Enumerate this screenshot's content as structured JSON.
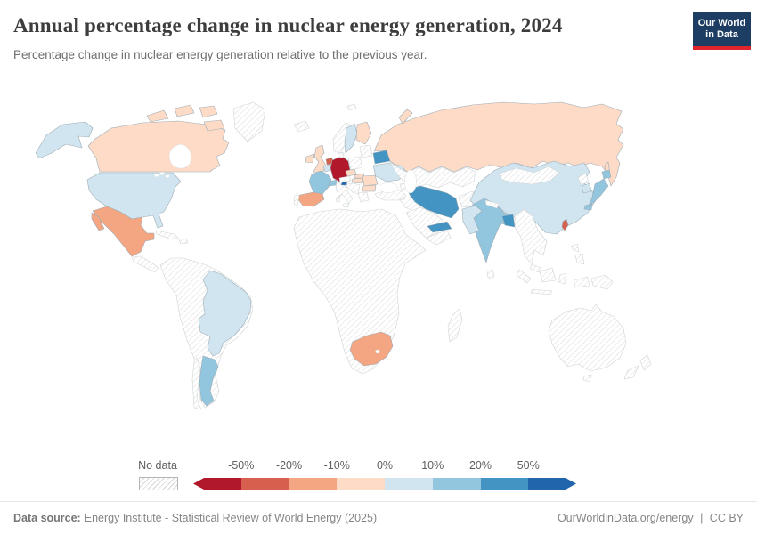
{
  "header": {
    "title": "Annual percentage change in nuclear energy generation, 2024",
    "subtitle": "Percentage change in nuclear energy generation relative to the previous year."
  },
  "logo": {
    "line1": "Our World",
    "line2": "in Data",
    "bg_color": "#1d3d63",
    "accent_color": "#e0232d"
  },
  "legend": {
    "no_data_label": "No data",
    "tick_labels": [
      "-50%",
      "-20%",
      "-10%",
      "0%",
      "10%",
      "20%",
      "50%"
    ],
    "bin_colors": [
      "#b2182b",
      "#d6604d",
      "#f4a582",
      "#fddbc7",
      "#d1e5f0",
      "#92c5de",
      "#4393c3",
      "#2166ac"
    ]
  },
  "footer": {
    "datasource_label": "Data source:",
    "datasource_text": "Energy Institute - Statistical Review of World Energy (2025)",
    "credit_url": "OurWorldinData.org/energy",
    "credit_separator": "|",
    "credit_license": "CC BY"
  },
  "chart_data": {
    "type": "choropleth_map",
    "title": "Annual percentage change in nuclear energy generation, 2024",
    "unit": "%",
    "bin_edges_pct": [
      -50,
      -20,
      -10,
      0,
      10,
      20,
      50
    ],
    "legend_position": "bottom",
    "no_data_style": "diagonal-hatch",
    "bins": [
      {
        "range": "less than -50%",
        "color": "#b2182b",
        "countries": [
          "Germany"
        ]
      },
      {
        "range": "-50% to -20%",
        "color": "#d6604d",
        "countries": [
          "Netherlands",
          "Taiwan"
        ]
      },
      {
        "range": "-20% to -10%",
        "color": "#f4a582",
        "countries": [
          "Mexico",
          "Spain",
          "South Africa"
        ]
      },
      {
        "range": "-10% to 0%",
        "color": "#fddbc7",
        "countries": [
          "Canada",
          "Russia",
          "Finland",
          "United Kingdom",
          "Ireland",
          "Czechia",
          "Slovakia",
          "Hungary",
          "Romania",
          "Bulgaria"
        ]
      },
      {
        "range": "0% to 10%",
        "color": "#d1e5f0",
        "countries": [
          "United States",
          "Brazil",
          "China",
          "Sweden",
          "Belgium",
          "Ukraine",
          "Pakistan",
          "South Korea"
        ]
      },
      {
        "range": "10% to 20%",
        "color": "#92c5de",
        "countries": [
          "France",
          "India",
          "Argentina",
          "Japan",
          "Switzerland"
        ]
      },
      {
        "range": "20% to 50%",
        "color": "#4393c3",
        "countries": [
          "Belarus",
          "Iran",
          "United Arab Emirates",
          "Bangladesh"
        ]
      },
      {
        "range": "more than 50%",
        "color": "#2166ac",
        "countries": [
          "Slovenia"
        ]
      }
    ],
    "no_data_regions": [
      "Most of Africa",
      "Australia",
      "New Zealand",
      "Norway",
      "Italy",
      "Poland",
      "Turkey",
      "Kazakhstan and Central Asia",
      "Middle East (except Iran and UAE)",
      "Southeast Asia",
      "Indonesia",
      "Mongolia",
      "Greenland",
      "Andean South America",
      "Chile",
      "Central America",
      "Caribbean"
    ]
  },
  "map": {
    "ocean_color": "#ffffff",
    "data_border": "#9fadb5",
    "nodata_border": "#cfd4d6",
    "hatch_line_color": "#d9d9d9",
    "country_fills": {
      "canada": "#fddbc7",
      "usa": "#d1e5f0",
      "greenland": "nodata",
      "mexico": "#f4a582",
      "central_america": "nodata",
      "cuba": "nodata",
      "hispaniola": "nodata",
      "south_america": "nodata",
      "brazil": "#d1e5f0",
      "argentina": "#92c5de",
      "chile": "nodata",
      "iceland": "nodata",
      "ireland": "#fddbc7",
      "uk": "#fddbc7",
      "norway": "nodata",
      "sweden": "#d1e5f0",
      "finland": "#fddbc7",
      "baltics": "nodata",
      "denmark": "nodata",
      "netherlands": "#d6604d",
      "belgium": "#d1e5f0",
      "germany": "#b2182b",
      "france": "#92c5de",
      "switzerland": "#92c5de",
      "spain": "#f4a582",
      "portugal": "nodata",
      "italy": "nodata",
      "austria": "nodata",
      "czechia": "#fddbc7",
      "poland": "nodata",
      "slovakia": "#fddbc7",
      "hungary": "#fddbc7",
      "slovenia": "#2166ac",
      "balkans": "nodata",
      "romania": "#fddbc7",
      "bulgaria": "#fddbc7",
      "greece": "nodata",
      "ukraine": "#d1e5f0",
      "belarus": "#4393c3",
      "russia": "#fddbc7",
      "svalbard": "nodata",
      "kazakhstan_central_asia": "nodata",
      "turkey": "nodata",
      "caucasus": "nodata",
      "syria_iraq": "nodata",
      "saudi_arabia": "nodata",
      "yemen_oman": "nodata",
      "uae": "#4393c3",
      "iran": "#4393c3",
      "afghanistan": "nodata",
      "pakistan": "#d1e5f0",
      "india": "#92c5de",
      "bangladesh": "#4393c3",
      "nepal": "nodata",
      "sri_lanka": "nodata",
      "myanmar_indochina": "nodata",
      "malaysia": "nodata",
      "china": "#d1e5f0",
      "mongolia": "nodata",
      "north_korea": "nodata",
      "south_korea": "#d1e5f0",
      "japan": "#92c5de",
      "taiwan": "#d6604d",
      "philippines": "nodata",
      "indonesia": "nodata",
      "papua_new_guinea": "nodata",
      "australia": "nodata",
      "new_zealand": "nodata",
      "africa": "nodata",
      "madagascar": "nodata",
      "south_africa": "#f4a582"
    }
  }
}
